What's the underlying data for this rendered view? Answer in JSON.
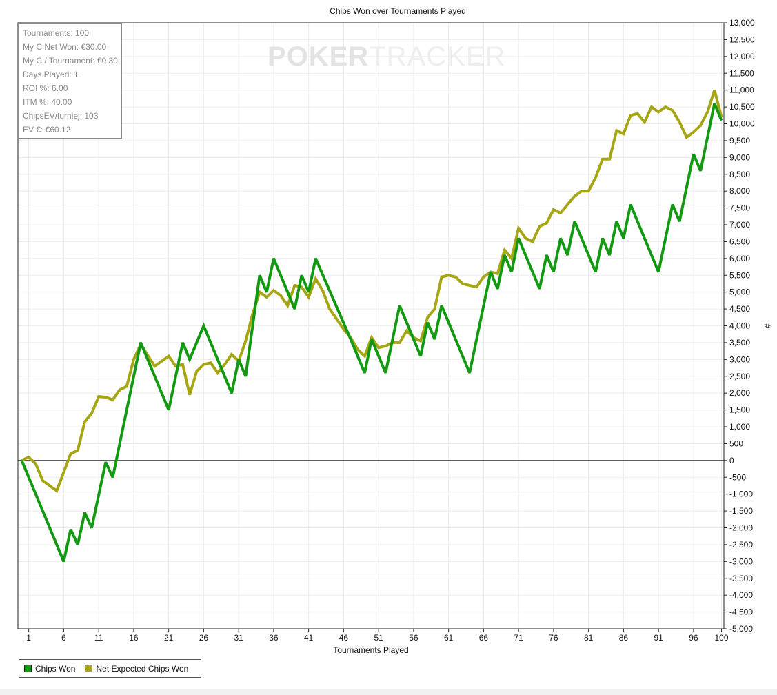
{
  "watermark": {
    "bold": "POKER",
    "light": "TRACKER"
  },
  "stats": [
    "Tournaments: 100",
    "My C Net Won: €30.00",
    "My C / Tournament: €0.30",
    "Days Played: 1",
    "ROI %: 6.00",
    "ITM %: 40.00",
    "ChipsEV/turniej: 103",
    "EV €: €60.12"
  ],
  "chart_data": {
    "type": "line",
    "title": "Chips Won over Tournaments Played",
    "xlabel": "Tournaments Played",
    "ylabel": "#",
    "xlim": [
      0,
      100
    ],
    "ylim": [
      -5000,
      13000
    ],
    "x_ticks": [
      1,
      6,
      11,
      16,
      21,
      26,
      31,
      36,
      41,
      46,
      51,
      56,
      61,
      66,
      71,
      76,
      81,
      86,
      91,
      96,
      100
    ],
    "y_ticks": [
      13000,
      12500,
      12000,
      11500,
      11000,
      10500,
      10000,
      9500,
      9000,
      8500,
      8000,
      7500,
      7000,
      6500,
      6000,
      5500,
      5000,
      4500,
      4000,
      3500,
      3000,
      2500,
      2000,
      1500,
      1000,
      500,
      0,
      -500,
      -1000,
      -1500,
      -2000,
      -2500,
      -3000,
      -3500,
      -4000,
      -4500,
      -5000
    ],
    "y_tick_labels": [
      "13,000",
      "12,500",
      "12,000",
      "11,500",
      "11,000",
      "10,500",
      "10,000",
      "9,500",
      "9,000",
      "8,500",
      "8,000",
      "7,500",
      "7,000",
      "6,500",
      "6,000",
      "5,500",
      "5,000",
      "4,500",
      "4,000",
      "3,500",
      "3,000",
      "2,500",
      "2,000",
      "1,500",
      "1,000",
      "500",
      "0",
      "-500",
      "-1,000",
      "-1,500",
      "-2,000",
      "-2,500",
      "-3,000",
      "-3,500",
      "-4,000",
      "-4,500",
      "-5,000"
    ],
    "grid": true,
    "legend_position": "bottom-left",
    "series": [
      {
        "name": "Chips Won",
        "color": "#119911",
        "points": [
          [
            0,
            0
          ],
          [
            6,
            -3000
          ],
          [
            7,
            -2050
          ],
          [
            8,
            -2500
          ],
          [
            9,
            -1550
          ],
          [
            10,
            -2000
          ],
          [
            12,
            -50
          ],
          [
            13,
            -500
          ],
          [
            17,
            3500
          ],
          [
            21,
            1500
          ],
          [
            23,
            3500
          ],
          [
            24,
            3000
          ],
          [
            26,
            4000
          ],
          [
            30,
            2000
          ],
          [
            31,
            3000
          ],
          [
            32,
            2500
          ],
          [
            34,
            5500
          ],
          [
            35,
            5000
          ],
          [
            36,
            6000
          ],
          [
            39,
            4500
          ],
          [
            40,
            5500
          ],
          [
            41,
            5000
          ],
          [
            42,
            6000
          ],
          [
            47,
            3600
          ],
          [
            49,
            2600
          ],
          [
            50,
            3600
          ],
          [
            52,
            2600
          ],
          [
            54,
            4600
          ],
          [
            57,
            3100
          ],
          [
            58,
            4100
          ],
          [
            59,
            3600
          ],
          [
            60,
            4600
          ],
          [
            64,
            2600
          ],
          [
            67,
            5600
          ],
          [
            68,
            5100
          ],
          [
            69,
            6100
          ],
          [
            70,
            5600
          ],
          [
            71,
            6600
          ],
          [
            74,
            5100
          ],
          [
            75,
            6100
          ],
          [
            76,
            5600
          ],
          [
            77,
            6600
          ],
          [
            78,
            6100
          ],
          [
            79,
            7100
          ],
          [
            82,
            5600
          ],
          [
            83,
            6600
          ],
          [
            84,
            6100
          ],
          [
            85,
            7100
          ],
          [
            86,
            6600
          ],
          [
            87,
            7600
          ],
          [
            91,
            5600
          ],
          [
            93,
            7600
          ],
          [
            94,
            7100
          ],
          [
            96,
            9100
          ],
          [
            97,
            8600
          ],
          [
            99,
            10600
          ],
          [
            100,
            10100
          ]
        ]
      },
      {
        "name": "Net Expected Chips Won",
        "color": "#a6a614",
        "points": [
          [
            0,
            0
          ],
          [
            1,
            100
          ],
          [
            2,
            -100
          ],
          [
            3,
            -600
          ],
          [
            4,
            -750
          ],
          [
            5,
            -900
          ],
          [
            6,
            -350
          ],
          [
            7,
            200
          ],
          [
            8,
            300
          ],
          [
            9,
            1150
          ],
          [
            10,
            1400
          ],
          [
            11,
            1900
          ],
          [
            12,
            1880
          ],
          [
            13,
            1800
          ],
          [
            14,
            2100
          ],
          [
            15,
            2200
          ],
          [
            16,
            3000
          ],
          [
            17,
            3450
          ],
          [
            19,
            2800
          ],
          [
            21,
            3100
          ],
          [
            22,
            2800
          ],
          [
            23,
            2850
          ],
          [
            24,
            1950
          ],
          [
            25,
            2650
          ],
          [
            26,
            2850
          ],
          [
            27,
            2900
          ],
          [
            28,
            2600
          ],
          [
            29,
            2850
          ],
          [
            30,
            3150
          ],
          [
            31,
            2950
          ],
          [
            32,
            3550
          ],
          [
            33,
            4350
          ],
          [
            34,
            5000
          ],
          [
            35,
            4850
          ],
          [
            36,
            5050
          ],
          [
            37,
            4900
          ],
          [
            38,
            4600
          ],
          [
            39,
            5200
          ],
          [
            40,
            5150
          ],
          [
            41,
            4850
          ],
          [
            42,
            5400
          ],
          [
            43,
            5050
          ],
          [
            44,
            4500
          ],
          [
            45,
            4200
          ],
          [
            46,
            3900
          ],
          [
            47,
            3650
          ],
          [
            48,
            3300
          ],
          [
            49,
            3100
          ],
          [
            50,
            3650
          ],
          [
            51,
            3350
          ],
          [
            52,
            3400
          ],
          [
            53,
            3500
          ],
          [
            54,
            3500
          ],
          [
            55,
            3850
          ],
          [
            56,
            3650
          ],
          [
            57,
            3550
          ],
          [
            58,
            4250
          ],
          [
            59,
            4500
          ],
          [
            60,
            5450
          ],
          [
            61,
            5500
          ],
          [
            62,
            5450
          ],
          [
            63,
            5250
          ],
          [
            64,
            5200
          ],
          [
            65,
            5150
          ],
          [
            66,
            5450
          ],
          [
            67,
            5600
          ],
          [
            68,
            5550
          ],
          [
            69,
            6250
          ],
          [
            70,
            6000
          ],
          [
            71,
            6900
          ],
          [
            72,
            6600
          ],
          [
            73,
            6500
          ],
          [
            74,
            6950
          ],
          [
            75,
            7050
          ],
          [
            76,
            7450
          ],
          [
            77,
            7350
          ],
          [
            78,
            7600
          ],
          [
            79,
            7850
          ],
          [
            80,
            8000
          ],
          [
            81,
            8000
          ],
          [
            82,
            8400
          ],
          [
            83,
            8950
          ],
          [
            84,
            8950
          ],
          [
            85,
            9800
          ],
          [
            86,
            9700
          ],
          [
            87,
            10250
          ],
          [
            88,
            10300
          ],
          [
            89,
            10050
          ],
          [
            90,
            10500
          ],
          [
            91,
            10350
          ],
          [
            92,
            10500
          ],
          [
            93,
            10400
          ],
          [
            94,
            10050
          ],
          [
            95,
            9600
          ],
          [
            96,
            9750
          ],
          [
            97,
            9950
          ],
          [
            98,
            10350
          ],
          [
            99,
            11000
          ],
          [
            100,
            10200
          ]
        ]
      }
    ]
  }
}
